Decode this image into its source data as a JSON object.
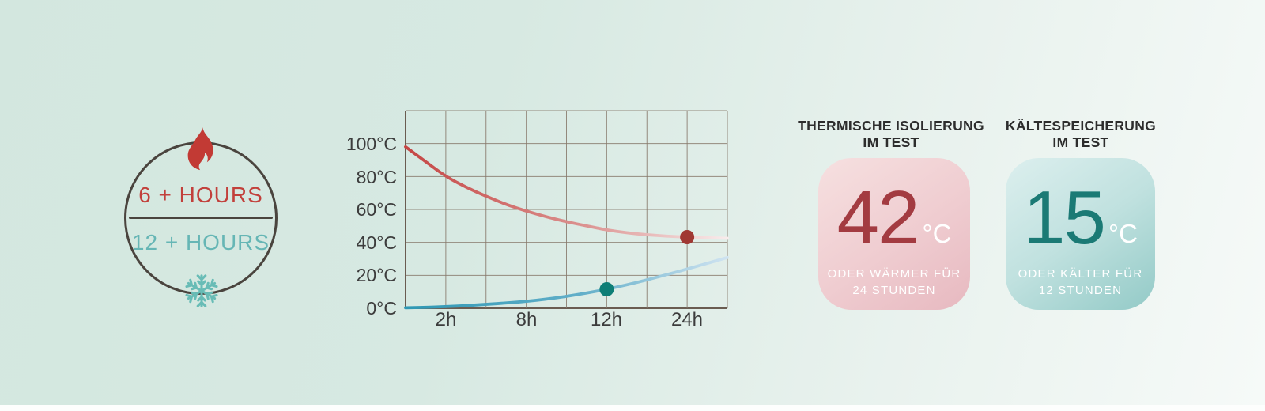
{
  "badge": {
    "hot_label": "6 + HOURS",
    "cold_label": "12 + HOURS",
    "hot_color": "#c2403b",
    "cold_color": "#66b6b5",
    "ring_color": "#4a443e",
    "flame_color": "#c23a34",
    "snowflake_color": "#68bcb6"
  },
  "chart_data": {
    "type": "line",
    "title": "",
    "xlabel": "",
    "ylabel": "",
    "grid": true,
    "grid_color": "#87796b",
    "axis_color": "#6a5c51",
    "x_tick_labels": [
      "2h",
      "8h",
      "12h",
      "24h"
    ],
    "x_tick_units": [
      1,
      3,
      5,
      7
    ],
    "x_units_range": [
      0,
      8
    ],
    "y_tick_labels": [
      "100°C",
      "80°C",
      "60°C",
      "40°C",
      "20°C",
      "0°C"
    ],
    "ylim": [
      0,
      120
    ],
    "series": [
      {
        "name": "hot-drink-cooling",
        "color_start": "#c54644",
        "color_mid": "#db918f",
        "color_end": "#f8ecec",
        "points": [
          [
            0,
            98
          ],
          [
            0.5,
            89
          ],
          [
            1,
            80
          ],
          [
            1.5,
            73.5
          ],
          [
            2,
            68
          ],
          [
            2.5,
            63
          ],
          [
            3,
            59
          ],
          [
            3.5,
            55.5
          ],
          [
            4,
            52.5
          ],
          [
            4.5,
            50
          ],
          [
            5,
            47.5
          ],
          [
            5.5,
            45.8
          ],
          [
            6,
            44.6
          ],
          [
            6.5,
            43.8
          ],
          [
            7,
            43.2
          ],
          [
            7.5,
            42.8
          ],
          [
            8,
            42.5
          ]
        ]
      },
      {
        "name": "cold-drink-warming",
        "color_start": "#2e98b4",
        "color_mid": "#63afc9",
        "color_end": "#cfe3f1",
        "points": [
          [
            0,
            0.3
          ],
          [
            0.5,
            0.5
          ],
          [
            1,
            1
          ],
          [
            1.5,
            1.6
          ],
          [
            2,
            2.4
          ],
          [
            2.5,
            3.2
          ],
          [
            3,
            4.2
          ],
          [
            3.5,
            5.5
          ],
          [
            4,
            7.2
          ],
          [
            4.5,
            9.2
          ],
          [
            5,
            11.5
          ],
          [
            5.5,
            14.2
          ],
          [
            6,
            17.2
          ],
          [
            6.5,
            20.5
          ],
          [
            7,
            23.8
          ],
          [
            7.5,
            27.3
          ],
          [
            8,
            30.8
          ]
        ]
      }
    ],
    "markers": [
      {
        "name": "hot-at-24h",
        "x": 7,
        "y": 43.2,
        "color": "#a03833"
      },
      {
        "name": "cold-at-12h",
        "x": 5,
        "y": 11.5,
        "color": "#0e7e76"
      }
    ]
  },
  "cards": [
    {
      "title_line1": "THERMISCHE ISOLIERUNG",
      "title_line2": "IM TEST",
      "value": "42",
      "unit": "°C",
      "value_color": "#a33b41",
      "sub_line1": "ODER WÄRMER FÜR",
      "sub_line2": "24 STUNDEN"
    },
    {
      "title_line1": "KÄLTESPEICHERUNG",
      "title_line2": "IM TEST",
      "value": "15",
      "unit": "°C",
      "value_color": "#1b7a75",
      "sub_line1": "ODER KÄLTER FÜR",
      "sub_line2": "12 STUNDEN"
    }
  ]
}
